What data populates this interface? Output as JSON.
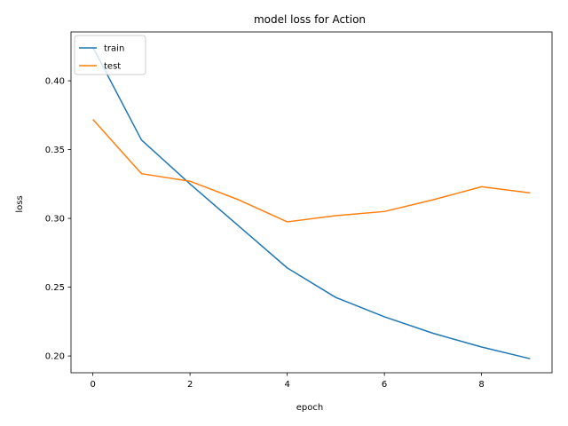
{
  "chart_data": {
    "type": "line",
    "title": "model loss for Action",
    "xlabel": "epoch",
    "ylabel": "loss",
    "x": [
      0,
      1,
      2,
      3,
      4,
      5,
      6,
      7,
      8,
      9
    ],
    "xlim": [
      -0.45,
      9.45
    ],
    "ylim": [
      0.1878,
      0.4355
    ],
    "xticks": [
      0,
      2,
      4,
      6,
      8
    ],
    "yticks": [
      0.2,
      0.25,
      0.3,
      0.35,
      0.4
    ],
    "xtick_labels": [
      "0",
      "2",
      "4",
      "6",
      "8"
    ],
    "ytick_labels": [
      "0.20",
      "0.25",
      "0.30",
      "0.35",
      "0.40"
    ],
    "grid": false,
    "legend": "top-left",
    "series": [
      {
        "name": "train",
        "color": "#1f77b4",
        "values": [
          0.4245,
          0.357,
          0.325,
          0.2945,
          0.264,
          0.2425,
          0.2285,
          0.2165,
          0.2065,
          0.198
        ]
      },
      {
        "name": "test",
        "color": "#ff7f0e",
        "values": [
          0.372,
          0.3325,
          0.327,
          0.3135,
          0.2975,
          0.302,
          0.305,
          0.3135,
          0.323,
          0.3185
        ]
      }
    ]
  }
}
